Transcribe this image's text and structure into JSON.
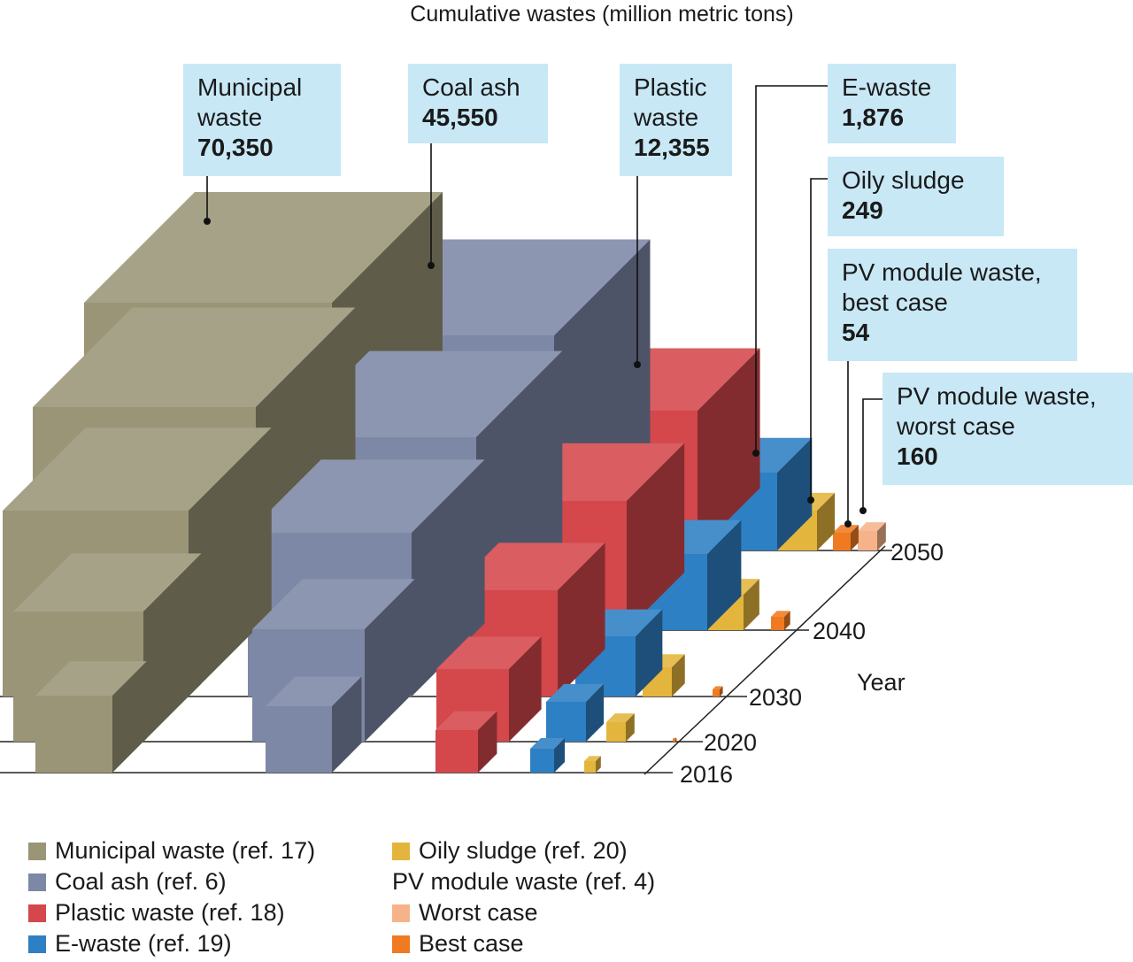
{
  "chart_data": {
    "type": "3d-bar",
    "title": "Cumulative wastes (million metric tons)",
    "zlabel": "Year",
    "years": [
      "2016",
      "2020",
      "2030",
      "2040",
      "2050"
    ],
    "series": [
      {
        "key": "municipal",
        "name": "Municipal waste (ref. 17)",
        "callout_name": "Municipal waste",
        "callout_value": "70,350",
        "color": "#9a9577"
      },
      {
        "key": "coal",
        "name": "Coal ash (ref. 6)",
        "callout_name": "Coal ash",
        "callout_value": "45,550",
        "color": "#7d88a6"
      },
      {
        "key": "plastic",
        "name": "Plastic waste (ref. 18)",
        "callout_name": "Plastic waste",
        "callout_value": "12,355",
        "color": "#d4474b"
      },
      {
        "key": "ewaste",
        "name": "E-waste (ref. 19)",
        "callout_name": "E-waste",
        "callout_value": "1,876",
        "color": "#2e80c4"
      },
      {
        "key": "oily",
        "name": "Oily sludge (ref. 20)",
        "callout_name": "Oily sludge",
        "callout_value": "249",
        "color": "#e4b53c"
      },
      {
        "key": "pv_best",
        "name": "Best case",
        "callout_name": "PV module waste, best case",
        "callout_value": "54",
        "color": "#f07a22"
      },
      {
        "key": "pv_worst",
        "name": "Worst case",
        "callout_name": "PV module waste, worst case",
        "callout_value": "160",
        "color": "#f6b38a"
      }
    ],
    "legend_group_label": "PV module waste (ref. 4)"
  }
}
